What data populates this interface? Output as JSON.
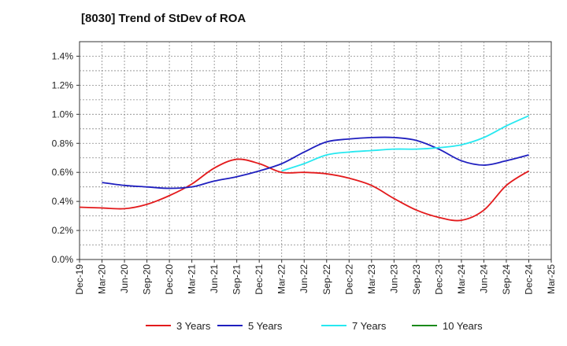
{
  "chart_data": {
    "type": "line",
    "title": "[8030]  Trend of StDev of ROA",
    "xlabel": "",
    "ylabel": "",
    "ylim": [
      0,
      0.015
    ],
    "yticks": [
      {
        "value": 0.0,
        "label": "0.0%"
      },
      {
        "value": 0.002,
        "label": "0.2%"
      },
      {
        "value": 0.004,
        "label": "0.4%"
      },
      {
        "value": 0.006,
        "label": "0.6%"
      },
      {
        "value": 0.008,
        "label": "0.8%"
      },
      {
        "value": 0.01,
        "label": "1.0%"
      },
      {
        "value": 0.012,
        "label": "1.2%"
      },
      {
        "value": 0.014,
        "label": "1.4%"
      }
    ],
    "categories": [
      "Dec-19",
      "Mar-20",
      "Jun-20",
      "Sep-20",
      "Dec-20",
      "Mar-21",
      "Jun-21",
      "Sep-21",
      "Dec-21",
      "Mar-22",
      "Jun-22",
      "Sep-22",
      "Dec-22",
      "Mar-23",
      "Jun-23",
      "Sep-23",
      "Dec-23",
      "Mar-24",
      "Jun-24",
      "Sep-24",
      "Dec-24",
      "Mar-25"
    ],
    "grid": true,
    "legend_position": "bottom",
    "series": [
      {
        "name": "3 Years",
        "color": "#e31a1c",
        "values": [
          0.0036,
          0.00355,
          0.0035,
          0.0038,
          0.0044,
          0.0052,
          0.0063,
          0.0069,
          0.0066,
          0.006,
          0.006,
          0.0059,
          0.0056,
          0.0051,
          0.0042,
          0.0034,
          0.0029,
          0.0027,
          0.0034,
          0.0051,
          0.0061,
          null
        ]
      },
      {
        "name": "5 Years",
        "color": "#1f1fbf",
        "values": [
          null,
          0.0053,
          0.0051,
          0.005,
          0.0049,
          0.005,
          0.0054,
          0.0057,
          0.0061,
          0.0066,
          0.0074,
          0.0081,
          0.0083,
          0.0084,
          0.0084,
          0.0082,
          0.0076,
          0.0068,
          0.0065,
          0.0068,
          0.0072,
          null
        ]
      },
      {
        "name": "7 Years",
        "color": "#27e8f0",
        "values": [
          null,
          null,
          null,
          null,
          null,
          null,
          null,
          null,
          null,
          0.0061,
          0.0066,
          0.0072,
          0.0074,
          0.0075,
          0.0076,
          0.0076,
          0.0077,
          0.0079,
          0.0084,
          0.0092,
          0.0099,
          null
        ]
      },
      {
        "name": "10 Years",
        "color": "#1a8a1a",
        "values": [
          null,
          null,
          null,
          null,
          null,
          null,
          null,
          null,
          null,
          null,
          null,
          null,
          null,
          null,
          null,
          null,
          null,
          null,
          null,
          null,
          null,
          null
        ]
      }
    ]
  }
}
